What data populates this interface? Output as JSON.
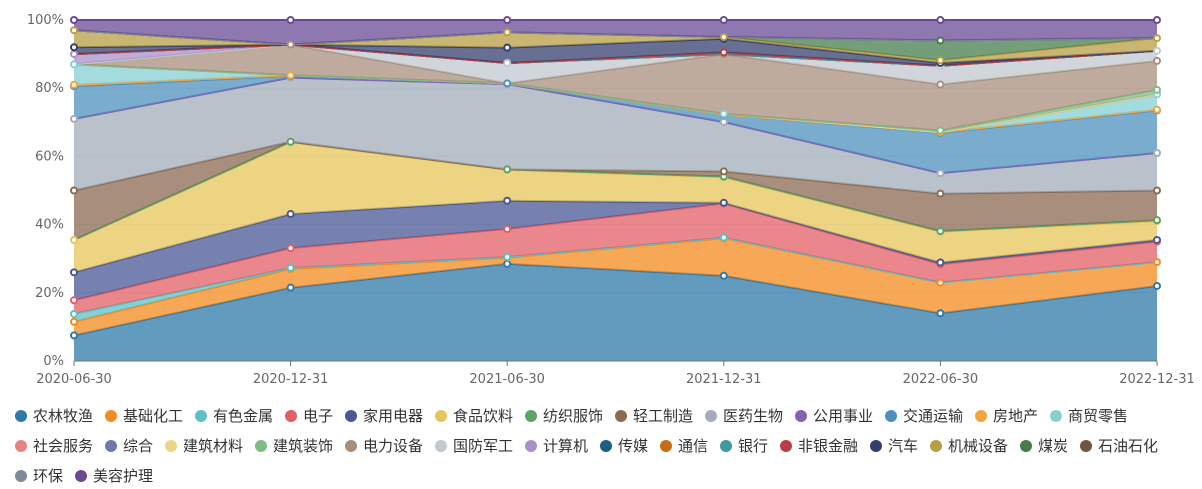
{
  "chart_data": {
    "type": "area",
    "stacked_percent": true,
    "x": [
      "2020-06-30",
      "2020-12-31",
      "2021-06-30",
      "2021-12-31",
      "2022-06-30",
      "2022-12-31"
    ],
    "y_ticks": [
      "0%",
      "20%",
      "40%",
      "60%",
      "80%",
      "100%"
    ],
    "ylim": [
      0,
      100
    ],
    "legend_position": "bottom",
    "series": [
      {
        "name": "农林牧渔",
        "color": "#2f79a8",
        "values": [
          7.5,
          21.5,
          28.5,
          25.0,
          14.0,
          22.0
        ]
      },
      {
        "name": "基础化工",
        "color": "#f48b1f",
        "values": [
          4.0,
          5.5,
          1.8,
          11.0,
          9.0,
          7.0
        ]
      },
      {
        "name": "有色金属",
        "color": "#5cc0c5",
        "values": [
          2.3,
          0.3,
          0.2,
          0.2,
          0.0,
          0.0
        ]
      },
      {
        "name": "电子",
        "color": "#e35f66",
        "values": [
          4.0,
          5.8,
          8.2,
          10.0,
          5.4,
          6.0
        ]
      },
      {
        "name": "家用电器",
        "color": "#4a5794",
        "values": [
          8.2,
          10.0,
          8.3,
          0.2,
          0.5,
          0.5
        ]
      },
      {
        "name": "食品饮料",
        "color": "#e6c65a",
        "values": [
          9.5,
          21.0,
          9.0,
          7.5,
          9.0,
          5.5
        ]
      },
      {
        "name": "纺织服饰",
        "color": "#5ea365",
        "values": [
          0.0,
          0.2,
          0.2,
          0.2,
          0.2,
          0.3
        ]
      },
      {
        "name": "轻工制造",
        "color": "#8b6a52",
        "values": [
          14.5,
          0.0,
          0.0,
          1.5,
          11.0,
          8.7
        ]
      },
      {
        "name": "医药生物",
        "color": "#a1adb9",
        "values": [
          21.0,
          18.8,
          25.0,
          14.5,
          6.0,
          11.0
        ]
      },
      {
        "name": "公用事业",
        "color": "#8362b4",
        "values": [
          0.0,
          0.0,
          0.0,
          0.0,
          0.0,
          0.0
        ]
      },
      {
        "name": "交通运输",
        "color": "#4e90bd",
        "values": [
          9.6,
          0.5,
          0.2,
          2.2,
          11.8,
          12.5
        ]
      },
      {
        "name": "房地产",
        "color": "#f5a33c",
        "values": [
          0.4,
          0.2,
          0.0,
          0.0,
          0.2,
          0.2
        ]
      },
      {
        "name": "商贸零售",
        "color": "#86cfd3",
        "values": [
          6.0,
          0.0,
          0.0,
          0.2,
          0.0,
          4.5
        ]
      },
      {
        "name": "社会服务",
        "color": "#e88384",
        "values": [
          0.0,
          0.0,
          0.0,
          0.0,
          0.0,
          0.0
        ]
      },
      {
        "name": "综合",
        "color": "#6c79ac",
        "values": [
          0.0,
          0.0,
          0.0,
          0.0,
          0.0,
          0.0
        ]
      },
      {
        "name": "建筑材料",
        "color": "#edd587",
        "values": [
          0.0,
          0.0,
          0.0,
          0.0,
          0.0,
          0.0
        ]
      },
      {
        "name": "建筑装饰",
        "color": "#7fbc87",
        "values": [
          0.0,
          0.0,
          0.0,
          0.0,
          0.5,
          1.3
        ]
      },
      {
        "name": "电力设备",
        "color": "#a88f7c",
        "values": [
          0.0,
          9.0,
          0.0,
          17.5,
          13.5,
          8.5
        ]
      },
      {
        "name": "国防军工",
        "color": "#c0c8d0",
        "values": [
          0.0,
          0.0,
          6.0,
          0.0,
          5.5,
          3.0
        ]
      },
      {
        "name": "计算机",
        "color": "#a88fca",
        "values": [
          3.0,
          0.0,
          0.0,
          0.0,
          0.0,
          0.0
        ]
      },
      {
        "name": "传媒",
        "color": "#1d5d8a",
        "values": [
          0.0,
          0.0,
          0.0,
          0.0,
          0.0,
          0.0
        ]
      },
      {
        "name": "通信",
        "color": "#c76d17",
        "values": [
          0.0,
          0.0,
          0.0,
          0.0,
          0.0,
          0.0
        ]
      },
      {
        "name": "银行",
        "color": "#3e9a9e",
        "values": [
          0.0,
          0.0,
          0.0,
          0.0,
          0.0,
          0.0
        ]
      },
      {
        "name": "非银金融",
        "color": "#b84045",
        "values": [
          0.0,
          0.0,
          0.0,
          0.5,
          0.0,
          0.0
        ]
      },
      {
        "name": "汽车",
        "color": "#343f6e",
        "values": [
          2.0,
          0.0,
          4.5,
          4.0,
          0.8,
          0.0
        ]
      },
      {
        "name": "机械设备",
        "color": "#b89e44",
        "values": [
          5.0,
          0.0,
          4.5,
          0.5,
          0.8,
          3.7
        ]
      },
      {
        "name": "煤炭",
        "color": "#467c4c",
        "values": [
          0.0,
          0.0,
          0.0,
          0.0,
          5.8,
          0.0
        ]
      },
      {
        "name": "石油石化",
        "color": "#6f5442",
        "values": [
          0.0,
          0.0,
          0.0,
          0.0,
          0.0,
          0.0
        ]
      },
      {
        "name": "环保",
        "color": "#7e8996",
        "values": [
          0.0,
          0.0,
          0.0,
          0.0,
          0.0,
          0.0
        ]
      },
      {
        "name": "美容护理",
        "color": "#6a4a96",
        "values": [
          3.0,
          7.2,
          3.6,
          5.0,
          6.0,
          5.3
        ]
      }
    ]
  }
}
